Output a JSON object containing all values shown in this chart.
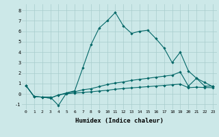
{
  "xlabel": "Humidex (Indice chaleur)",
  "bg_color": "#cce8e8",
  "line_color": "#006666",
  "xlim": [
    -0.5,
    23.5
  ],
  "ylim": [
    -1.5,
    8.6
  ],
  "xticks": [
    0,
    1,
    2,
    3,
    4,
    5,
    6,
    7,
    8,
    9,
    10,
    11,
    12,
    13,
    14,
    15,
    16,
    17,
    18,
    19,
    20,
    21,
    22,
    23
  ],
  "yticks": [
    -1,
    0,
    1,
    2,
    3,
    4,
    5,
    6,
    7,
    8
  ],
  "s1_x": [
    0,
    1,
    2,
    3,
    4,
    5,
    6,
    7,
    8,
    9,
    10,
    11,
    12,
    13,
    14,
    15,
    16,
    17,
    18,
    19,
    20,
    21,
    22,
    23
  ],
  "s1_y": [
    0.8,
    -0.25,
    -0.3,
    -0.3,
    -1.1,
    0.1,
    0.3,
    2.5,
    4.7,
    6.3,
    7.0,
    7.8,
    6.5,
    5.8,
    6.0,
    6.1,
    5.3,
    4.4,
    3.0,
    4.0,
    2.2,
    1.5,
    1.1,
    0.7
  ],
  "s2_x": [
    0,
    1,
    2,
    3,
    4,
    5,
    6,
    7,
    8,
    9,
    10,
    11,
    12,
    13,
    14,
    15,
    16,
    17,
    18,
    19,
    20,
    21,
    22,
    23
  ],
  "s2_y": [
    0.8,
    -0.25,
    -0.3,
    -0.4,
    -0.1,
    0.1,
    0.2,
    0.4,
    0.5,
    0.7,
    0.9,
    1.05,
    1.15,
    1.3,
    1.4,
    1.5,
    1.6,
    1.7,
    1.8,
    2.1,
    0.75,
    1.5,
    0.75,
    0.75
  ],
  "s3_x": [
    0,
    1,
    2,
    3,
    4,
    5,
    6,
    7,
    8,
    9,
    10,
    11,
    12,
    13,
    14,
    15,
    16,
    17,
    18,
    19,
    20,
    21,
    22,
    23
  ],
  "s3_y": [
    0.8,
    -0.25,
    -0.3,
    -0.4,
    -0.1,
    0.02,
    0.08,
    0.15,
    0.2,
    0.28,
    0.35,
    0.45,
    0.52,
    0.58,
    0.64,
    0.7,
    0.76,
    0.82,
    0.88,
    0.94,
    0.6,
    0.65,
    0.62,
    0.6
  ]
}
